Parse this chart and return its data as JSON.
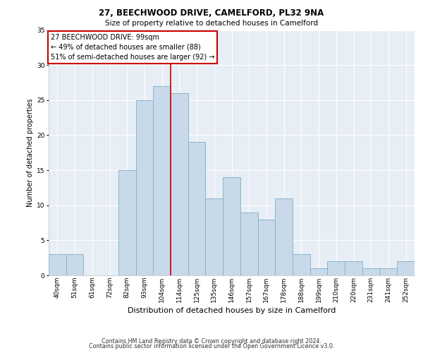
{
  "title1": "27, BEECHWOOD DRIVE, CAMELFORD, PL32 9NA",
  "title2": "Size of property relative to detached houses in Camelford",
  "xlabel": "Distribution of detached houses by size in Camelford",
  "ylabel": "Number of detached properties",
  "categories": [
    "40sqm",
    "51sqm",
    "61sqm",
    "72sqm",
    "82sqm",
    "93sqm",
    "104sqm",
    "114sqm",
    "125sqm",
    "135sqm",
    "146sqm",
    "157sqm",
    "167sqm",
    "178sqm",
    "188sqm",
    "199sqm",
    "210sqm",
    "220sqm",
    "231sqm",
    "241sqm",
    "252sqm"
  ],
  "values": [
    3,
    3,
    0,
    0,
    15,
    25,
    27,
    26,
    19,
    11,
    14,
    9,
    8,
    11,
    3,
    1,
    2,
    2,
    1,
    1,
    2
  ],
  "bar_color": "#c8d9ea",
  "bar_edge_color": "#8ab4cc",
  "bg_color": "#e8eef5",
  "grid_color": "#ffffff",
  "annotation_text": "27 BEECHWOOD DRIVE: 99sqm\n← 49% of detached houses are smaller (88)\n51% of semi-detached houses are larger (92) →",
  "annotation_box_color": "#ffffff",
  "annotation_box_edge": "#cc0000",
  "footer1": "Contains HM Land Registry data © Crown copyright and database right 2024.",
  "footer2": "Contains public sector information licensed under the Open Government Licence v3.0.",
  "ylim": [
    0,
    35
  ],
  "yticks": [
    0,
    5,
    10,
    15,
    20,
    25,
    30,
    35
  ],
  "title1_fontsize": 8.5,
  "title2_fontsize": 7.5,
  "xlabel_fontsize": 8,
  "ylabel_fontsize": 7,
  "tick_fontsize": 6.5,
  "annot_fontsize": 7,
  "footer_fontsize": 5.8
}
